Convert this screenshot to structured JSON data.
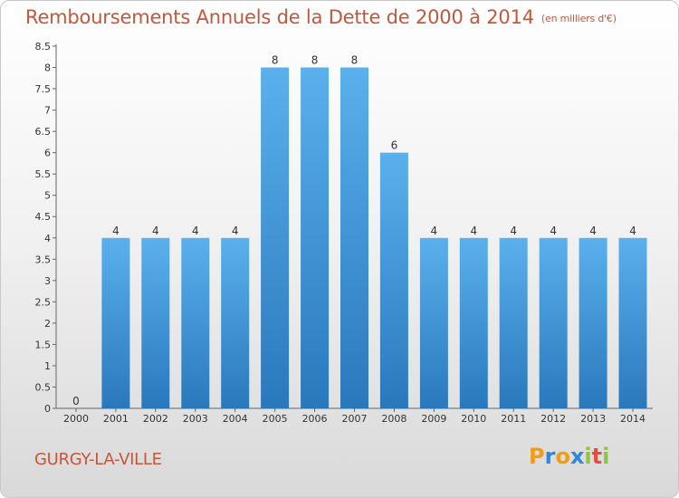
{
  "chart_data": {
    "type": "bar",
    "title": "Remboursements Annuels de la Dette de 2000 à 2014",
    "unit": "(en milliers d'€)",
    "categories": [
      "2000",
      "2001",
      "2002",
      "2003",
      "2004",
      "2005",
      "2006",
      "2007",
      "2008",
      "2009",
      "2010",
      "2011",
      "2012",
      "2013",
      "2014"
    ],
    "values": [
      0,
      4,
      4,
      4,
      4,
      8,
      8,
      8,
      6,
      4,
      4,
      4,
      4,
      4,
      4
    ],
    "data_labels": [
      "0",
      "4",
      "4",
      "4",
      "4",
      "8",
      "8",
      "8",
      "6",
      "4",
      "4",
      "4",
      "4",
      "4",
      "4"
    ],
    "y_ticks": [
      "0",
      "0.5",
      "1",
      "1.5",
      "2",
      "2.5",
      "3",
      "3.5",
      "4",
      "4.5",
      "5",
      "5.5",
      "6",
      "6.5",
      "7",
      "7.5",
      "8",
      "8.5"
    ],
    "ylim": [
      0,
      8.5
    ],
    "grid": false,
    "bar_color": "#3d8fd4"
  },
  "footer": {
    "commune": "GURGY-LA-VILLE",
    "logo": [
      "P",
      "r",
      "o",
      "x",
      "i",
      "t",
      "i"
    ],
    "logo_colors": [
      "#f39c12",
      "#2e86de",
      "#f39c12",
      "#2e86de",
      "#8cc63f",
      "#e74c3c",
      "#8cc63f"
    ]
  }
}
